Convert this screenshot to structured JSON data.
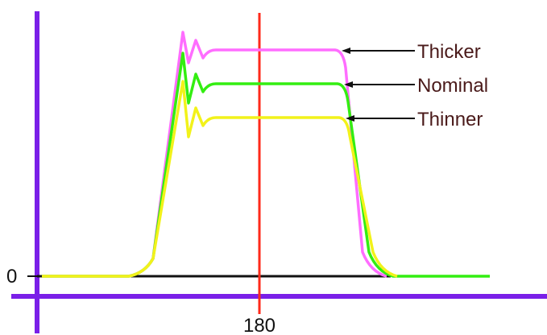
{
  "colors": {
    "axis": "#7a1fe8",
    "baseline": "#111111",
    "marker": "#ff2a1a",
    "thicker": "#ff6dff",
    "nominal": "#33ee11",
    "thinner": "#f2f21a",
    "arrow": "#111111",
    "label_text": "#4a1a1a"
  },
  "chart_data": {
    "type": "line",
    "title": "",
    "xlabel": "",
    "ylabel": "",
    "y_tick_labels": [
      "0"
    ],
    "x_tick_labels": [
      "180"
    ],
    "marker_line": {
      "x": 180,
      "label": "180"
    },
    "grid": false,
    "legend": "callouts-right",
    "series": [
      {
        "name": "Thicker",
        "key": "thicker",
        "plateau_level": 1.0
      },
      {
        "name": "Nominal",
        "key": "nominal",
        "plateau_level": 0.85
      },
      {
        "name": "Thinner",
        "key": "thinner",
        "plateau_level": 0.7
      }
    ]
  }
}
